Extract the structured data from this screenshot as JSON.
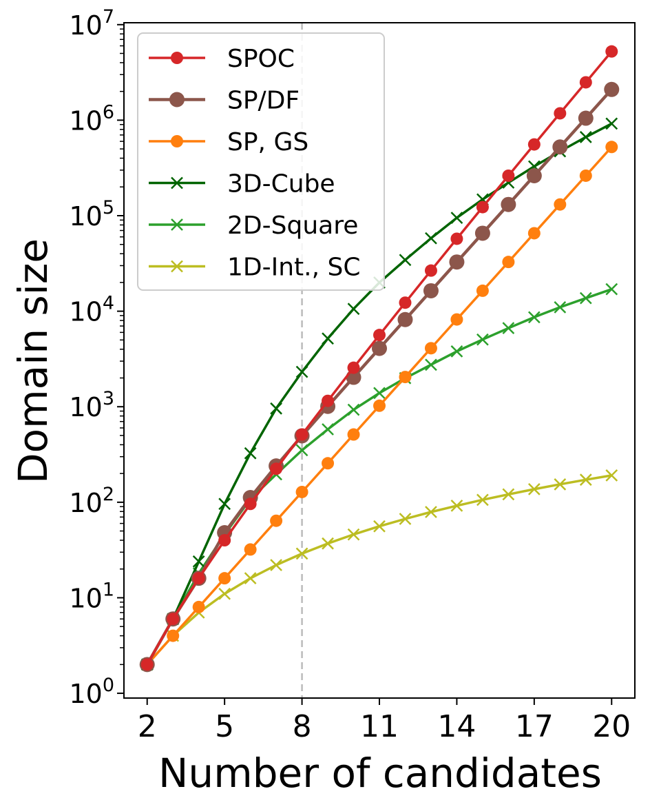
{
  "chart_data": {
    "type": "line",
    "title": "",
    "xlabel": "Number of candidates",
    "ylabel": "Domain size",
    "yscale": "log",
    "xlim": [
      1.1,
      20.9
    ],
    "ylim_exp": [
      -0.05,
      7.02
    ],
    "xticks": [
      2,
      5,
      8,
      11,
      14,
      17,
      20
    ],
    "xtick_labels": [
      "2",
      "5",
      "8",
      "11",
      "14",
      "17",
      "20"
    ],
    "yticks": [
      {
        "base": "10",
        "exp": "0"
      },
      {
        "base": "10",
        "exp": "1"
      },
      {
        "base": "10",
        "exp": "2"
      },
      {
        "base": "10",
        "exp": "3"
      },
      {
        "base": "10",
        "exp": "4"
      },
      {
        "base": "10",
        "exp": "5"
      },
      {
        "base": "10",
        "exp": "6"
      },
      {
        "base": "10",
        "exp": "7"
      }
    ],
    "vline_x": 8,
    "legend_position": "upper-left",
    "x": [
      2,
      3,
      4,
      5,
      6,
      7,
      8,
      9,
      10,
      11,
      12,
      13,
      14,
      15,
      16,
      17,
      18,
      19,
      20
    ],
    "series": [
      {
        "name": "SPOC",
        "color": "#d62728",
        "marker": "circle",
        "size": 9,
        "width": 3.5,
        "values": [
          2,
          6,
          16,
          40,
          96,
          224,
          512,
          1152,
          2560,
          5632,
          12288,
          26624,
          57344,
          122880,
          262144,
          557056,
          1179648,
          2490368,
          5242880
        ]
      },
      {
        "name": "SP/DF",
        "color": "#8c564b",
        "marker": "circle",
        "size": 11,
        "width": 4.5,
        "values": [
          2,
          6,
          16,
          48,
          112,
          240,
          496,
          1008,
          2032,
          4080,
          8176,
          16368,
          32752,
          65520,
          131056,
          262128,
          524272,
          1048560,
          2097136
        ]
      },
      {
        "name": "SP, GS",
        "color": "#ff7f0e",
        "marker": "circle",
        "size": 9,
        "width": 3.5,
        "values": [
          2,
          4,
          8,
          16,
          32,
          64,
          128,
          256,
          512,
          1024,
          2048,
          4096,
          8192,
          16384,
          32768,
          65536,
          131072,
          262144,
          524288
        ]
      },
      {
        "name": "3D-Cube",
        "color": "#006400",
        "marker": "x",
        "size": 8,
        "width": 3.5,
        "values": [
          2,
          6,
          24,
          96,
          326,
          958,
          2316,
          5180,
          10575,
          19950,
          34400,
          58000,
          95000,
          148000,
          222000,
          328000,
          472000,
          665000,
          920000
        ]
      },
      {
        "name": "2D-Square",
        "color": "#2ca02c",
        "marker": "x",
        "size": 8,
        "width": 3.5,
        "values": [
          2,
          6,
          18,
          46,
          108,
          196,
          350,
          580,
          930,
          1390,
          1990,
          2750,
          3800,
          5050,
          6650,
          8650,
          11000,
          13700,
          17000
        ]
      },
      {
        "name": "1D-Int., SC",
        "color": "#bcbd22",
        "marker": "x",
        "size": 8,
        "width": 3.5,
        "values": [
          2,
          4,
          7,
          11,
          16,
          22,
          29,
          37,
          46,
          56,
          67,
          79,
          92,
          106,
          121,
          137,
          154,
          172,
          191
        ]
      }
    ]
  }
}
